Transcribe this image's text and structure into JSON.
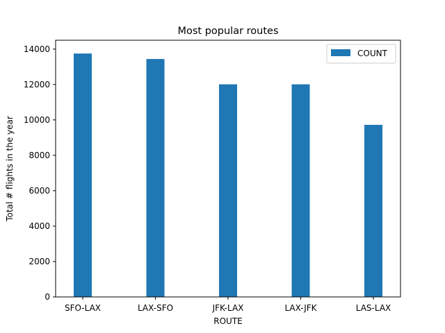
{
  "chart_data": {
    "type": "bar",
    "title": "Most popular routes",
    "xlabel": "ROUTE",
    "ylabel": "Total # flights in the year",
    "categories": [
      "SFO-LAX",
      "LAX-SFO",
      "JFK-LAX",
      "LAX-JFK",
      "LAS-LAX"
    ],
    "series": [
      {
        "name": "COUNT",
        "values": [
          13750,
          13440,
          12010,
          12010,
          9720
        ],
        "color": "#1f77b4"
      }
    ],
    "ylim": [
      0,
      14500
    ],
    "yticks": [
      0,
      2000,
      4000,
      6000,
      8000,
      10000,
      12000,
      14000
    ],
    "grid": false,
    "legend_position": "top-right"
  }
}
